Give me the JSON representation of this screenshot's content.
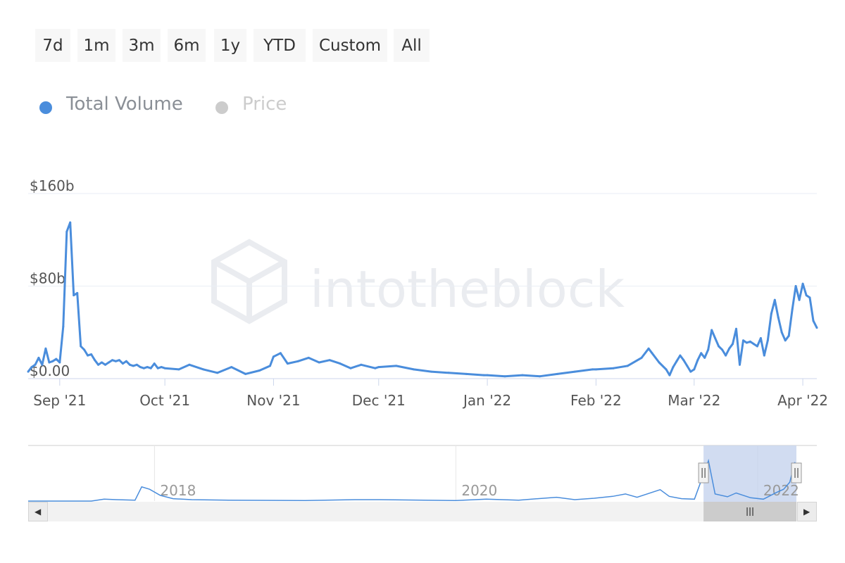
{
  "range_selector": {
    "buttons": [
      "7d",
      "1m",
      "3m",
      "6m",
      "1y",
      "YTD",
      "Custom",
      "All"
    ]
  },
  "legend": {
    "items": [
      {
        "label": "Total Volume",
        "color": "#4a8ddc",
        "active": true
      },
      {
        "label": "Price",
        "color": "#cccccc",
        "active": false
      }
    ]
  },
  "watermark": "intotheblock",
  "colors": {
    "series": "#4a8ddc",
    "grid": "#e9eef5",
    "axis_text": "#555555",
    "navigator_mask": "#c6d3ee",
    "legend_text_active": "#8a8f96",
    "legend_text_inactive": "#cccccc"
  },
  "chart_data": {
    "type": "line",
    "ylabel": "",
    "xlabel": "",
    "yaxis": {
      "min": 0,
      "max": 160,
      "ticks": [
        0,
        80,
        160
      ],
      "tick_labels": [
        "$0.00",
        "$80b",
        "$160b"
      ],
      "unit": "$b"
    },
    "x_range": [
      "2021-08-23",
      "2022-04-05"
    ],
    "x_ticks": [
      {
        "date": "2021-09-01",
        "label": "Sep '21"
      },
      {
        "date": "2021-10-01",
        "label": "Oct '21"
      },
      {
        "date": "2021-11-01",
        "label": "Nov '21"
      },
      {
        "date": "2021-12-01",
        "label": "Dec '21"
      },
      {
        "date": "2022-01-01",
        "label": "Jan '22"
      },
      {
        "date": "2022-02-01",
        "label": "Feb '22"
      },
      {
        "date": "2022-03-01",
        "label": "Mar '22"
      },
      {
        "date": "2022-04-01",
        "label": "Apr '22"
      }
    ],
    "grid": true,
    "series": [
      {
        "name": "Total Volume",
        "points": [
          [
            "2021-08-23",
            6
          ],
          [
            "2021-08-24",
            10
          ],
          [
            "2021-08-25",
            12
          ],
          [
            "2021-08-26",
            18
          ],
          [
            "2021-08-27",
            12
          ],
          [
            "2021-08-28",
            26
          ],
          [
            "2021-08-29",
            14
          ],
          [
            "2021-08-30",
            15
          ],
          [
            "2021-08-31",
            17
          ],
          [
            "2021-09-01",
            14
          ],
          [
            "2021-09-02",
            45
          ],
          [
            "2021-09-03",
            127
          ],
          [
            "2021-09-04",
            135
          ],
          [
            "2021-09-05",
            72
          ],
          [
            "2021-09-06",
            74
          ],
          [
            "2021-09-07",
            28
          ],
          [
            "2021-09-08",
            25
          ],
          [
            "2021-09-09",
            20
          ],
          [
            "2021-09-10",
            21
          ],
          [
            "2021-09-11",
            16
          ],
          [
            "2021-09-12",
            12
          ],
          [
            "2021-09-13",
            14
          ],
          [
            "2021-09-14",
            12
          ],
          [
            "2021-09-15",
            14
          ],
          [
            "2021-09-16",
            16
          ],
          [
            "2021-09-17",
            15
          ],
          [
            "2021-09-18",
            16
          ],
          [
            "2021-09-19",
            13
          ],
          [
            "2021-09-20",
            15
          ],
          [
            "2021-09-21",
            12
          ],
          [
            "2021-09-22",
            11
          ],
          [
            "2021-09-23",
            12
          ],
          [
            "2021-09-24",
            10
          ],
          [
            "2021-09-25",
            9
          ],
          [
            "2021-09-26",
            10
          ],
          [
            "2021-09-27",
            9
          ],
          [
            "2021-09-28",
            13
          ],
          [
            "2021-09-29",
            9
          ],
          [
            "2021-09-30",
            10
          ],
          [
            "2021-10-01",
            9
          ],
          [
            "2021-10-05",
            8
          ],
          [
            "2021-10-08",
            12
          ],
          [
            "2021-10-12",
            8
          ],
          [
            "2021-10-16",
            5
          ],
          [
            "2021-10-20",
            10
          ],
          [
            "2021-10-24",
            4
          ],
          [
            "2021-10-28",
            7
          ],
          [
            "2021-10-31",
            11
          ],
          [
            "2021-11-01",
            19
          ],
          [
            "2021-11-03",
            22
          ],
          [
            "2021-11-05",
            13
          ],
          [
            "2021-11-08",
            15
          ],
          [
            "2021-11-11",
            18
          ],
          [
            "2021-11-14",
            14
          ],
          [
            "2021-11-17",
            16
          ],
          [
            "2021-11-20",
            13
          ],
          [
            "2021-11-23",
            9
          ],
          [
            "2021-11-26",
            12
          ],
          [
            "2021-11-30",
            9
          ],
          [
            "2021-12-01",
            10
          ],
          [
            "2021-12-06",
            11
          ],
          [
            "2021-12-11",
            8
          ],
          [
            "2021-12-16",
            6
          ],
          [
            "2021-12-21",
            5
          ],
          [
            "2021-12-26",
            4
          ],
          [
            "2021-12-31",
            3
          ],
          [
            "2022-01-01",
            3
          ],
          [
            "2022-01-06",
            2
          ],
          [
            "2022-01-11",
            3
          ],
          [
            "2022-01-16",
            2
          ],
          [
            "2022-01-21",
            4
          ],
          [
            "2022-01-26",
            6
          ],
          [
            "2022-01-31",
            8
          ],
          [
            "2022-02-01",
            8
          ],
          [
            "2022-02-06",
            9
          ],
          [
            "2022-02-10",
            11
          ],
          [
            "2022-02-14",
            18
          ],
          [
            "2022-02-16",
            26
          ],
          [
            "2022-02-17",
            22
          ],
          [
            "2022-02-19",
            14
          ],
          [
            "2022-02-21",
            8
          ],
          [
            "2022-02-22",
            3
          ],
          [
            "2022-02-23",
            10
          ],
          [
            "2022-02-24",
            15
          ],
          [
            "2022-02-25",
            20
          ],
          [
            "2022-02-26",
            16
          ],
          [
            "2022-02-27",
            11
          ],
          [
            "2022-02-28",
            6
          ],
          [
            "2022-03-01",
            8
          ],
          [
            "2022-03-02",
            16
          ],
          [
            "2022-03-03",
            22
          ],
          [
            "2022-03-04",
            18
          ],
          [
            "2022-03-05",
            25
          ],
          [
            "2022-03-06",
            42
          ],
          [
            "2022-03-07",
            35
          ],
          [
            "2022-03-08",
            28
          ],
          [
            "2022-03-09",
            25
          ],
          [
            "2022-03-10",
            20
          ],
          [
            "2022-03-11",
            26
          ],
          [
            "2022-03-12",
            30
          ],
          [
            "2022-03-13",
            43
          ],
          [
            "2022-03-14",
            12
          ],
          [
            "2022-03-15",
            33
          ],
          [
            "2022-03-16",
            31
          ],
          [
            "2022-03-17",
            32
          ],
          [
            "2022-03-18",
            30
          ],
          [
            "2022-03-19",
            28
          ],
          [
            "2022-03-20",
            35
          ],
          [
            "2022-03-21",
            20
          ],
          [
            "2022-03-22",
            33
          ],
          [
            "2022-03-23",
            56
          ],
          [
            "2022-03-24",
            68
          ],
          [
            "2022-03-25",
            53
          ],
          [
            "2022-03-26",
            40
          ],
          [
            "2022-03-27",
            33
          ],
          [
            "2022-03-28",
            37
          ],
          [
            "2022-03-29",
            60
          ],
          [
            "2022-03-30",
            80
          ],
          [
            "2022-03-31",
            68
          ],
          [
            "2022-04-01",
            82
          ],
          [
            "2022-04-02",
            72
          ],
          [
            "2022-04-03",
            70
          ],
          [
            "2022-04-04",
            50
          ],
          [
            "2022-04-05",
            44
          ]
        ]
      }
    ],
    "navigator": {
      "x_range": [
        "2017-03-01",
        "2022-04-05"
      ],
      "year_labels": [
        "2018",
        "2020",
        "2022"
      ],
      "selected_range": [
        "2021-08-23",
        "2022-04-05"
      ],
      "points": [
        [
          "2017-03-01",
          0
        ],
        [
          "2017-08-01",
          0
        ],
        [
          "2017-09-01",
          4
        ],
        [
          "2017-10-01",
          3
        ],
        [
          "2017-11-15",
          2
        ],
        [
          "2017-12-01",
          30
        ],
        [
          "2017-12-20",
          25
        ],
        [
          "2018-01-15",
          12
        ],
        [
          "2018-02-15",
          5
        ],
        [
          "2018-04-01",
          3
        ],
        [
          "2018-07-01",
          2
        ],
        [
          "2019-01-01",
          1
        ],
        [
          "2019-05-01",
          3
        ],
        [
          "2019-07-01",
          3
        ],
        [
          "2020-01-01",
          1
        ],
        [
          "2020-03-15",
          4
        ],
        [
          "2020-06-01",
          2
        ],
        [
          "2020-09-01",
          8
        ],
        [
          "2020-10-15",
          3
        ],
        [
          "2020-12-01",
          6
        ],
        [
          "2021-01-15",
          10
        ],
        [
          "2021-02-15",
          15
        ],
        [
          "2021-03-15",
          8
        ],
        [
          "2021-05-10",
          24
        ],
        [
          "2021-06-01",
          10
        ],
        [
          "2021-07-01",
          5
        ],
        [
          "2021-08-01",
          4
        ],
        [
          "2021-09-04",
          85
        ],
        [
          "2021-09-20",
          15
        ],
        [
          "2021-10-20",
          9
        ],
        [
          "2021-11-10",
          17
        ],
        [
          "2021-12-15",
          7
        ],
        [
          "2022-01-15",
          4
        ],
        [
          "2022-02-15",
          18
        ],
        [
          "2022-03-05",
          25
        ],
        [
          "2022-03-20",
          40
        ],
        [
          "2022-04-01",
          82
        ],
        [
          "2022-04-05",
          50
        ]
      ]
    }
  }
}
